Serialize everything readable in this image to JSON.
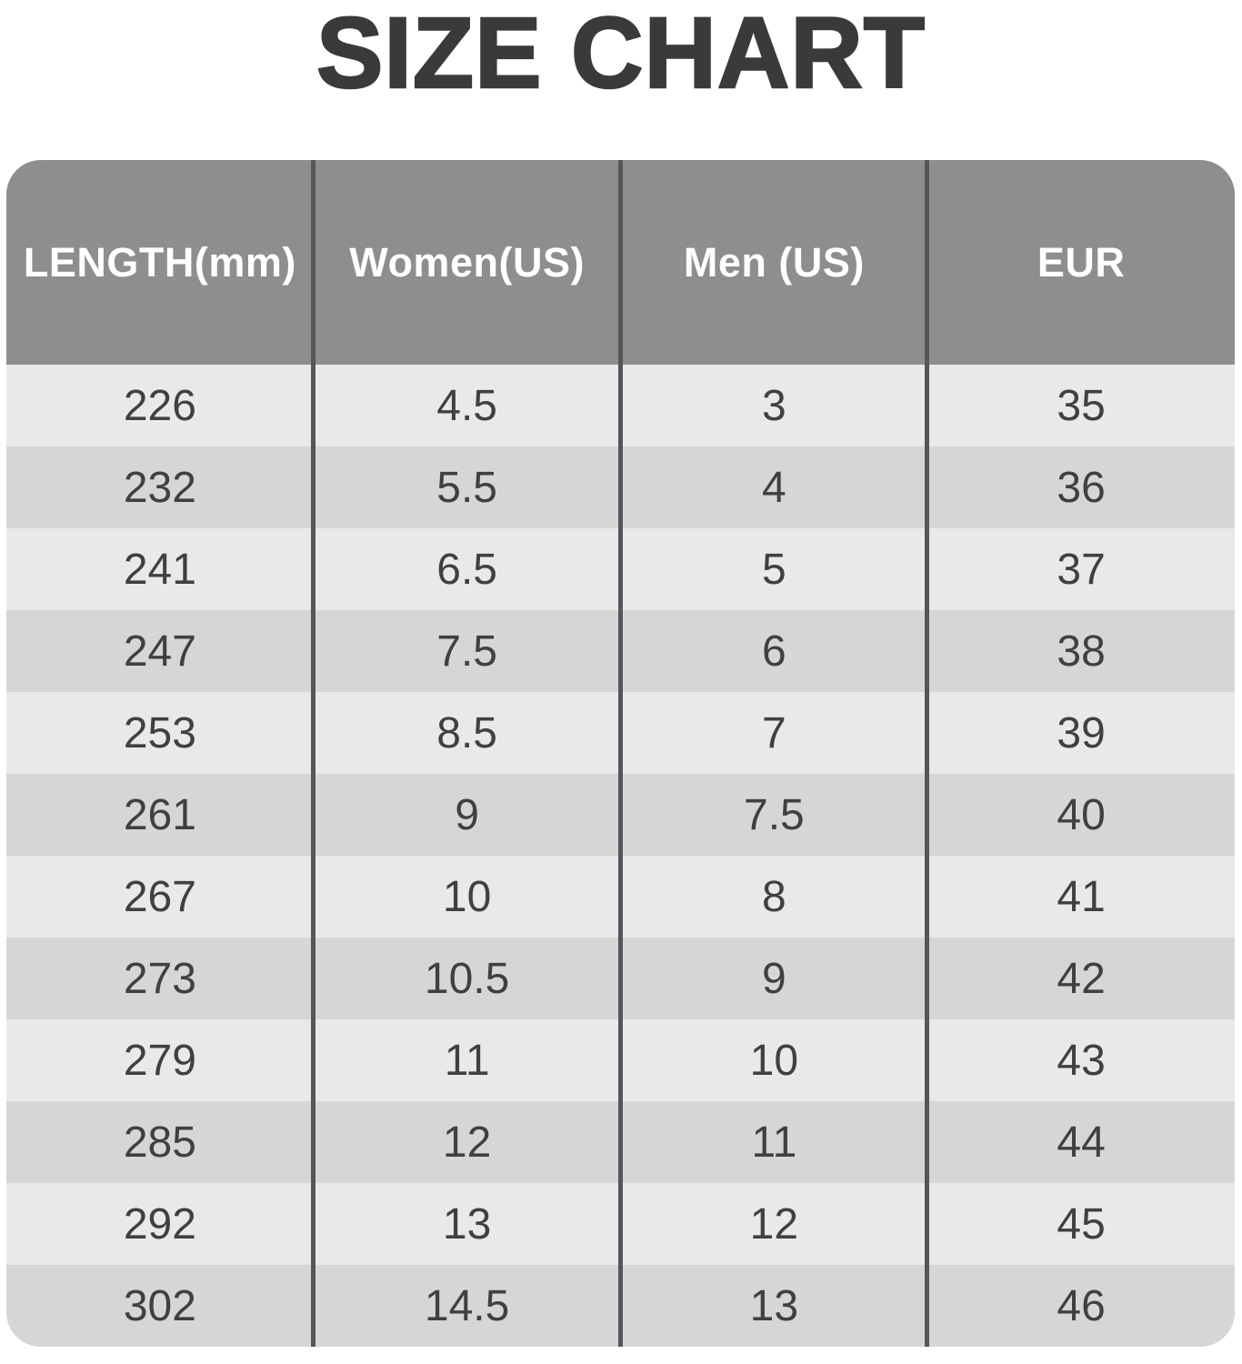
{
  "title": "SIZE CHART",
  "colors": {
    "title_text": "#3a3a3a",
    "header_bg": "#8e8e8e",
    "header_text": "#ffffff",
    "row_light": "#e9e9e9",
    "row_dark": "#d6d6d6",
    "divider": "#55565a",
    "cell_text": "#404040"
  },
  "chart_data": {
    "type": "table",
    "title": "SIZE CHART",
    "columns": [
      "LENGTH(mm)",
      "Women(US)",
      "Men (US)",
      "EUR"
    ],
    "rows": [
      [
        "226",
        "4.5",
        "3",
        "35"
      ],
      [
        "232",
        "5.5",
        "4",
        "36"
      ],
      [
        "241",
        "6.5",
        "5",
        "37"
      ],
      [
        "247",
        "7.5",
        "6",
        "38"
      ],
      [
        "253",
        "8.5",
        "7",
        "39"
      ],
      [
        "261",
        "9",
        "7.5",
        "40"
      ],
      [
        "267",
        "10",
        "8",
        "41"
      ],
      [
        "273",
        "10.5",
        "9",
        "42"
      ],
      [
        "279",
        "11",
        "10",
        "43"
      ],
      [
        "285",
        "12",
        "11",
        "44"
      ],
      [
        "292",
        "13",
        "12",
        "45"
      ],
      [
        "302",
        "14.5",
        "13",
        "46"
      ]
    ]
  }
}
